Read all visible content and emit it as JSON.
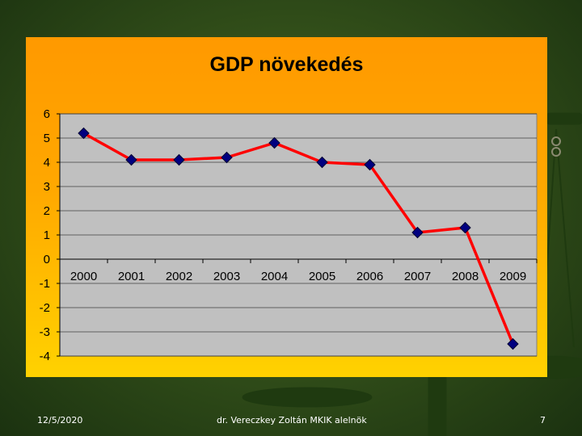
{
  "footer": {
    "date": "12/5/2020",
    "author": "dr. Vereczkey Zoltán MKIK alelnök",
    "page": "7"
  },
  "colors": {
    "panel_top": "#ff9900",
    "panel_bottom": "#ffd200",
    "plot_area": "#c0c0c0",
    "line": "#ff0000",
    "marker": "#000080"
  },
  "chart_data": {
    "type": "line",
    "title": "GDP növekedés",
    "xlabel": "",
    "ylabel": "",
    "categories": [
      "2000",
      "2001",
      "2002",
      "2003",
      "2004",
      "2005",
      "2006",
      "2007",
      "2008",
      "2009"
    ],
    "series": [
      {
        "values": [
          5.2,
          4.1,
          4.1,
          4.2,
          4.8,
          4.0,
          3.9,
          1.1,
          1.3,
          -3.5
        ]
      }
    ],
    "ylim": [
      -4,
      6
    ],
    "yticks": [
      "6",
      "5",
      "4",
      "3",
      "2",
      "1",
      "0",
      "-1",
      "-2",
      "-3",
      "-4"
    ],
    "grid": true,
    "legend": "none"
  }
}
